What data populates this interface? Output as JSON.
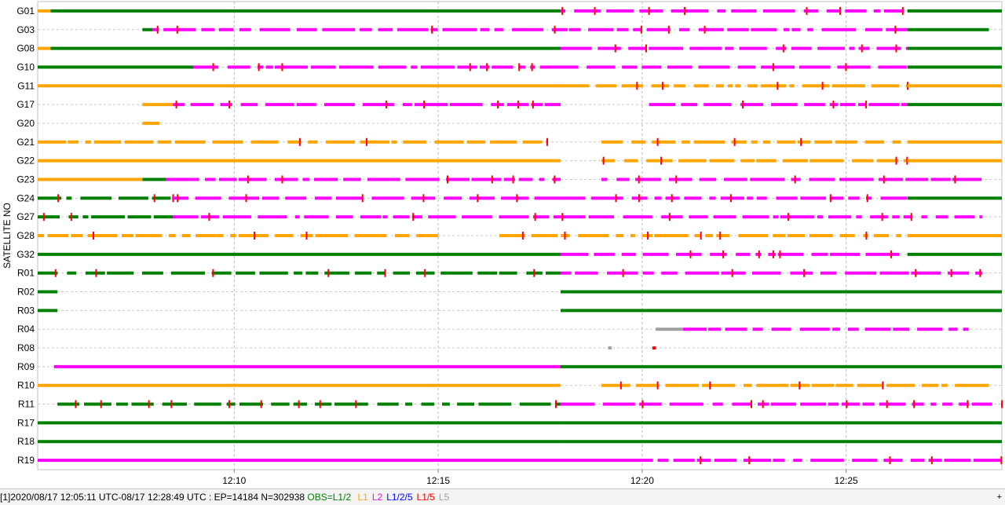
{
  "chart_data": {
    "type": "timeline",
    "ylabel": "SATELLITE NO",
    "x_ticks": [
      "12:10",
      "12:15",
      "12:20",
      "12:25"
    ],
    "x_range": [
      "12:05:11",
      "12:28:49"
    ],
    "satellites": [
      {
        "id": "G01",
        "segments": [
          {
            "start": "12:05:11",
            "end": "12:05:30",
            "type": "L1"
          },
          {
            "start": "12:05:30",
            "end": "12:18:00",
            "type": "L1/2"
          },
          {
            "start": "12:18:00",
            "end": "12:21:10",
            "type": "L2",
            "gappy": true
          },
          {
            "start": "12:21:10",
            "end": "12:26:30",
            "type": "L2",
            "gappy": true
          },
          {
            "start": "12:26:30",
            "end": "12:28:49",
            "type": "L1/2"
          }
        ]
      },
      {
        "id": "G03",
        "segments": [
          {
            "start": "12:07:45",
            "end": "12:08:00",
            "type": "L1/2"
          },
          {
            "start": "12:08:00",
            "end": "12:18:00",
            "type": "L2",
            "gappy": true
          },
          {
            "start": "12:18:00",
            "end": "12:26:30",
            "type": "L2",
            "gappy": true
          },
          {
            "start": "12:26:30",
            "end": "12:28:30",
            "type": "L1/2"
          }
        ]
      },
      {
        "id": "G08",
        "segments": [
          {
            "start": "12:05:11",
            "end": "12:05:30",
            "type": "L1"
          },
          {
            "start": "12:05:30",
            "end": "12:18:00",
            "type": "L1/2"
          },
          {
            "start": "12:18:00",
            "end": "12:26:30",
            "type": "L2",
            "gappy": true
          },
          {
            "start": "12:26:30",
            "end": "12:28:49",
            "type": "L1/2"
          }
        ]
      },
      {
        "id": "G10",
        "segments": [
          {
            "start": "12:05:11",
            "end": "12:09:00",
            "type": "L1/2"
          },
          {
            "start": "12:09:00",
            "end": "12:18:00",
            "type": "L2",
            "gappy": true
          },
          {
            "start": "12:18:00",
            "end": "12:26:30",
            "type": "L2",
            "gappy": true
          },
          {
            "start": "12:26:30",
            "end": "12:28:49",
            "type": "L1/2"
          }
        ]
      },
      {
        "id": "G11",
        "segments": [
          {
            "start": "12:05:11",
            "end": "12:18:00",
            "type": "L1"
          },
          {
            "start": "12:18:00",
            "end": "12:26:30",
            "type": "L1",
            "gappy": true
          },
          {
            "start": "12:26:30",
            "end": "12:28:49",
            "type": "L1"
          }
        ]
      },
      {
        "id": "G17",
        "segments": [
          {
            "start": "12:07:45",
            "end": "12:08:30",
            "type": "L1"
          },
          {
            "start": "12:08:30",
            "end": "12:18:00",
            "type": "L2",
            "gappy": true
          },
          {
            "start": "12:20:10",
            "end": "12:26:30",
            "type": "L2",
            "gappy": true
          },
          {
            "start": "12:26:30",
            "end": "12:28:49",
            "type": "L1/2"
          }
        ]
      },
      {
        "id": "G20",
        "segments": [
          {
            "start": "12:07:45",
            "end": "12:08:10",
            "type": "L1"
          }
        ]
      },
      {
        "id": "G21",
        "segments": [
          {
            "start": "12:05:11",
            "end": "12:17:40",
            "type": "L1",
            "gappy": true
          },
          {
            "start": "12:19:00",
            "end": "12:26:30",
            "type": "L1",
            "gappy": true
          },
          {
            "start": "12:26:30",
            "end": "12:28:49",
            "type": "L1"
          }
        ]
      },
      {
        "id": "G22",
        "segments": [
          {
            "start": "12:05:11",
            "end": "12:18:00",
            "type": "L1"
          },
          {
            "start": "12:19:00",
            "end": "12:26:30",
            "type": "L1",
            "gappy": true
          },
          {
            "start": "12:26:30",
            "end": "12:28:49",
            "type": "L1"
          }
        ]
      },
      {
        "id": "G23",
        "segments": [
          {
            "start": "12:05:11",
            "end": "12:07:45",
            "type": "L1"
          },
          {
            "start": "12:07:45",
            "end": "12:08:20",
            "type": "L1/2"
          },
          {
            "start": "12:08:20",
            "end": "12:18:00",
            "type": "L2",
            "gappy": true
          },
          {
            "start": "12:19:00",
            "end": "12:26:30",
            "type": "L2",
            "gappy": true
          },
          {
            "start": "12:26:30",
            "end": "12:28:20",
            "type": "L2",
            "gappy": true
          }
        ]
      },
      {
        "id": "G24",
        "segments": [
          {
            "start": "12:05:11",
            "end": "12:08:30",
            "type": "L1/2",
            "gappy": true
          },
          {
            "start": "12:08:30",
            "end": "12:18:00",
            "type": "L2",
            "gappy": true
          },
          {
            "start": "12:18:00",
            "end": "12:26:30",
            "type": "L2",
            "gappy": true
          },
          {
            "start": "12:26:30",
            "end": "12:28:49",
            "type": "L1/2"
          }
        ]
      },
      {
        "id": "G27",
        "segments": [
          {
            "start": "12:05:11",
            "end": "12:08:30",
            "type": "L1/2",
            "gappy": true
          },
          {
            "start": "12:08:30",
            "end": "12:18:00",
            "type": "L2",
            "gappy": true
          },
          {
            "start": "12:18:00",
            "end": "12:26:30",
            "type": "L2",
            "gappy": true
          },
          {
            "start": "12:26:30",
            "end": "12:28:20",
            "type": "L2",
            "gappy": true
          }
        ]
      },
      {
        "id": "G28",
        "segments": [
          {
            "start": "12:05:11",
            "end": "12:15:00",
            "type": "L1",
            "gappy": true
          },
          {
            "start": "12:16:30",
            "end": "12:26:30",
            "type": "L1",
            "gappy": true
          },
          {
            "start": "12:26:30",
            "end": "12:28:49",
            "type": "L1"
          }
        ]
      },
      {
        "id": "G32",
        "segments": [
          {
            "start": "12:05:11",
            "end": "12:18:00",
            "type": "L1/2"
          },
          {
            "start": "12:18:00",
            "end": "12:26:30",
            "type": "L2",
            "gappy": true
          },
          {
            "start": "12:26:30",
            "end": "12:28:49",
            "type": "L1/2"
          }
        ]
      },
      {
        "id": "R01",
        "segments": [
          {
            "start": "12:05:11",
            "end": "12:18:00",
            "type": "L1/2",
            "gappy": true
          },
          {
            "start": "12:18:00",
            "end": "12:28:20",
            "type": "L2",
            "gappy": true
          }
        ]
      },
      {
        "id": "R02",
        "segments": [
          {
            "start": "12:05:11",
            "end": "12:05:40",
            "type": "L1/2"
          },
          {
            "start": "12:18:00",
            "end": "12:28:49",
            "type": "L1/2"
          }
        ]
      },
      {
        "id": "R03",
        "segments": [
          {
            "start": "12:05:11",
            "end": "12:05:40",
            "type": "L1/2"
          },
          {
            "start": "12:18:00",
            "end": "12:28:49",
            "type": "L1/2"
          }
        ]
      },
      {
        "id": "R04",
        "segments": [
          {
            "start": "12:20:20",
            "end": "12:21:00",
            "type": "L5"
          },
          {
            "start": "12:21:00",
            "end": "12:28:00",
            "type": "L2",
            "gappy": true
          }
        ]
      },
      {
        "id": "R08",
        "segments": [
          {
            "start": "12:19:10",
            "end": "12:19:15",
            "type": "L5"
          },
          {
            "start": "12:20:15",
            "end": "12:20:20",
            "type": "L1/5"
          }
        ]
      },
      {
        "id": "R09",
        "segments": [
          {
            "start": "12:05:35",
            "end": "12:18:00",
            "type": "L2"
          },
          {
            "start": "12:18:00",
            "end": "12:28:49",
            "type": "L1/2"
          }
        ]
      },
      {
        "id": "R10",
        "segments": [
          {
            "start": "12:05:11",
            "end": "12:18:00",
            "type": "L1"
          },
          {
            "start": "12:19:00",
            "end": "12:28:30",
            "type": "L1",
            "gappy": true
          }
        ]
      },
      {
        "id": "R11",
        "segments": [
          {
            "start": "12:05:40",
            "end": "12:18:00",
            "type": "L1/2",
            "gappy": true
          },
          {
            "start": "12:18:00",
            "end": "12:28:49",
            "type": "L2",
            "gappy": true
          }
        ]
      },
      {
        "id": "R17",
        "segments": [
          {
            "start": "12:05:11",
            "end": "12:18:00",
            "type": "L1/2"
          },
          {
            "start": "12:18:00",
            "end": "12:28:49",
            "type": "L1/2"
          }
        ]
      },
      {
        "id": "R18",
        "segments": [
          {
            "start": "12:05:11",
            "end": "12:18:00",
            "type": "L1/2"
          },
          {
            "start": "12:18:00",
            "end": "12:28:49",
            "type": "L1/2"
          }
        ]
      },
      {
        "id": "R19",
        "segments": [
          {
            "start": "12:05:11",
            "end": "12:20:00",
            "type": "L2"
          },
          {
            "start": "12:20:00",
            "end": "12:28:49",
            "type": "L2",
            "gappy": true
          }
        ]
      }
    ],
    "colors": {
      "L1/2": "#008000",
      "L1": "#ffa500",
      "L2": "#ff00ff",
      "L1/2/5": "#0000ff",
      "L1/5": "#ff0000",
      "L5": "#a0a0a0"
    }
  },
  "status_bar": {
    "prefix": "[1]2020/08/17 12:05:11 UTC-08/17 12:28:49 UTC : EP=14184 N=302938",
    "obs_label": "OBS=L1/2",
    "legend": [
      {
        "label": "L1",
        "color": "#ffa500"
      },
      {
        "label": "L2",
        "color": "#ff00ff"
      },
      {
        "label": "L1/2/5",
        "color": "#0000ff"
      },
      {
        "label": "L1/5",
        "color": "#ff0000"
      },
      {
        "label": "L5",
        "color": "#a0a0a0"
      }
    ],
    "obs_color": "#008000",
    "corner": "+"
  }
}
